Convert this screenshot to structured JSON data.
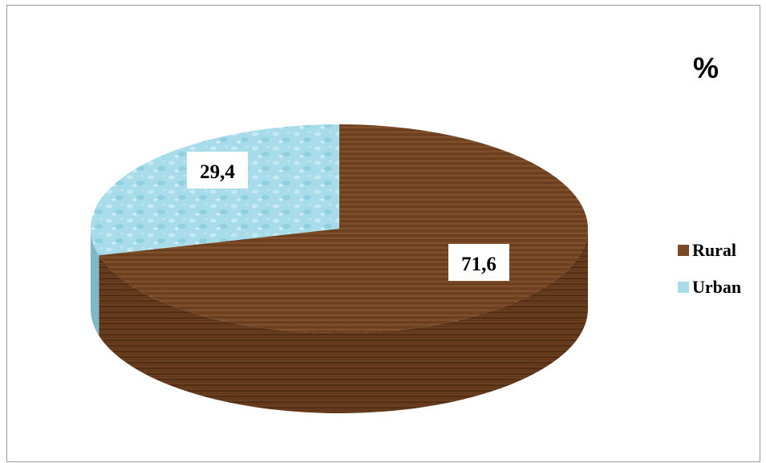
{
  "chart_data": {
    "type": "pie",
    "title": "%",
    "categories": [
      "Rural",
      "Urban"
    ],
    "values": [
      71.6,
      29.4
    ],
    "value_labels": [
      "71,6",
      "29,4"
    ],
    "colors": {
      "Rural": "#7a4a28",
      "Urban": "#a9dcea"
    },
    "legend_position": "right"
  }
}
